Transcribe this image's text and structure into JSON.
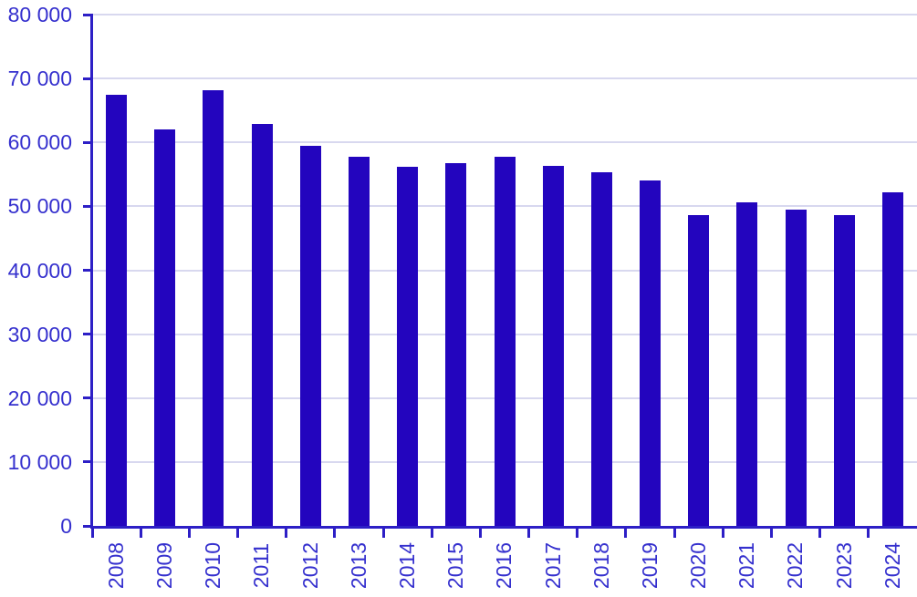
{
  "chart_data": {
    "type": "bar",
    "title": "",
    "xlabel": "",
    "ylabel": "",
    "categories": [
      "2008",
      "2009",
      "2010",
      "2011",
      "2012",
      "2013",
      "2014",
      "2015",
      "2016",
      "2017",
      "2018",
      "2019",
      "2020",
      "2021",
      "2022",
      "2023",
      "2024"
    ],
    "values": [
      67500,
      62100,
      68200,
      62900,
      59400,
      57800,
      56200,
      56700,
      57700,
      56300,
      55400,
      54100,
      48600,
      50600,
      49500,
      48600,
      52200
    ],
    "ylim": [
      0,
      80000
    ],
    "ytick_step": 10000,
    "ytick_labels": [
      "0",
      "10 000",
      "20 000",
      "30 000",
      "40 000",
      "50 000",
      "60 000",
      "70 000",
      "80 000"
    ],
    "grid": true,
    "legend": false,
    "colors": {
      "bar": "#2305BE",
      "axis": "#2D1FC6",
      "text": "#3530CE",
      "gridline": "#D8D8EF",
      "background": "#FFFFFF"
    }
  }
}
